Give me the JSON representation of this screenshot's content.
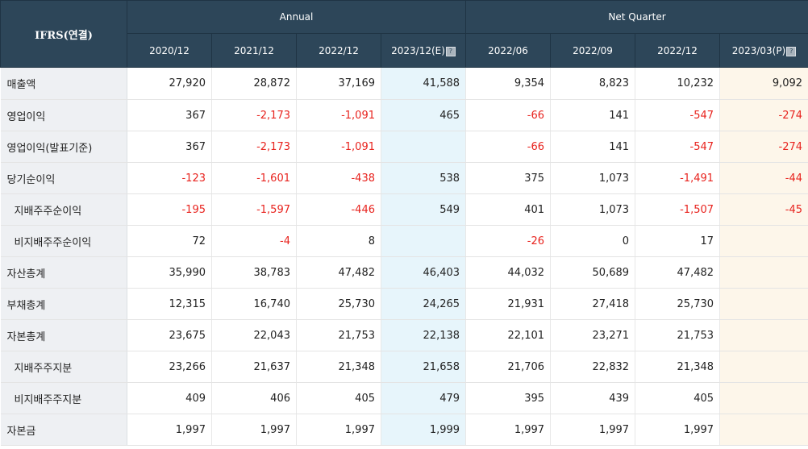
{
  "header": {
    "ifrs_label": "IFRS(연결)",
    "annual_label": "Annual",
    "quarter_label": "Net Quarter",
    "info_icon_glyph": "?",
    "periods": [
      {
        "label": "2020/12",
        "info": false
      },
      {
        "label": "2021/12",
        "info": false
      },
      {
        "label": "2022/12",
        "info": false
      },
      {
        "label": "2023/12(E)",
        "info": true
      },
      {
        "label": "2022/06",
        "info": false
      },
      {
        "label": "2022/09",
        "info": false
      },
      {
        "label": "2022/12",
        "info": false
      },
      {
        "label": "2023/03(P)",
        "info": true
      }
    ]
  },
  "colors": {
    "header_bg": "#2d4659",
    "label_bg": "#eef0f3",
    "estimate_bg": "#e7f5fb",
    "preliminary_bg": "#fdf6ea",
    "negative_text": "#e8231e"
  },
  "rows": [
    {
      "label": "매출액",
      "indent": false,
      "values": [
        "27,920",
        "28,872",
        "37,169",
        "41,588",
        "9,354",
        "8,823",
        "10,232",
        "9,092"
      ]
    },
    {
      "label": "영업이익",
      "indent": false,
      "values": [
        "367",
        "-2,173",
        "-1,091",
        "465",
        "-66",
        "141",
        "-547",
        "-274"
      ]
    },
    {
      "label": "영업이익(발표기준)",
      "indent": false,
      "values": [
        "367",
        "-2,173",
        "-1,091",
        "",
        "-66",
        "141",
        "-547",
        "-274"
      ]
    },
    {
      "label": "당기순이익",
      "indent": false,
      "values": [
        "-123",
        "-1,601",
        "-438",
        "538",
        "375",
        "1,073",
        "-1,491",
        "-44"
      ]
    },
    {
      "label": "지배주주순이익",
      "indent": true,
      "values": [
        "-195",
        "-1,597",
        "-446",
        "549",
        "401",
        "1,073",
        "-1,507",
        "-45"
      ]
    },
    {
      "label": "비지배주주순이익",
      "indent": true,
      "values": [
        "72",
        "-4",
        "8",
        "",
        "-26",
        "0",
        "17",
        ""
      ]
    },
    {
      "label": "자산총계",
      "indent": false,
      "values": [
        "35,990",
        "38,783",
        "47,482",
        "46,403",
        "44,032",
        "50,689",
        "47,482",
        ""
      ]
    },
    {
      "label": "부채총계",
      "indent": false,
      "values": [
        "12,315",
        "16,740",
        "25,730",
        "24,265",
        "21,931",
        "27,418",
        "25,730",
        ""
      ]
    },
    {
      "label": "자본총계",
      "indent": false,
      "values": [
        "23,675",
        "22,043",
        "21,753",
        "22,138",
        "22,101",
        "23,271",
        "21,753",
        ""
      ]
    },
    {
      "label": "지배주주지분",
      "indent": true,
      "values": [
        "23,266",
        "21,637",
        "21,348",
        "21,658",
        "21,706",
        "22,832",
        "21,348",
        ""
      ]
    },
    {
      "label": "비지배주주지분",
      "indent": true,
      "values": [
        "409",
        "406",
        "405",
        "479",
        "395",
        "439",
        "405",
        ""
      ]
    },
    {
      "label": "자본금",
      "indent": false,
      "values": [
        "1,997",
        "1,997",
        "1,997",
        "1,999",
        "1,997",
        "1,997",
        "1,997",
        ""
      ]
    }
  ]
}
